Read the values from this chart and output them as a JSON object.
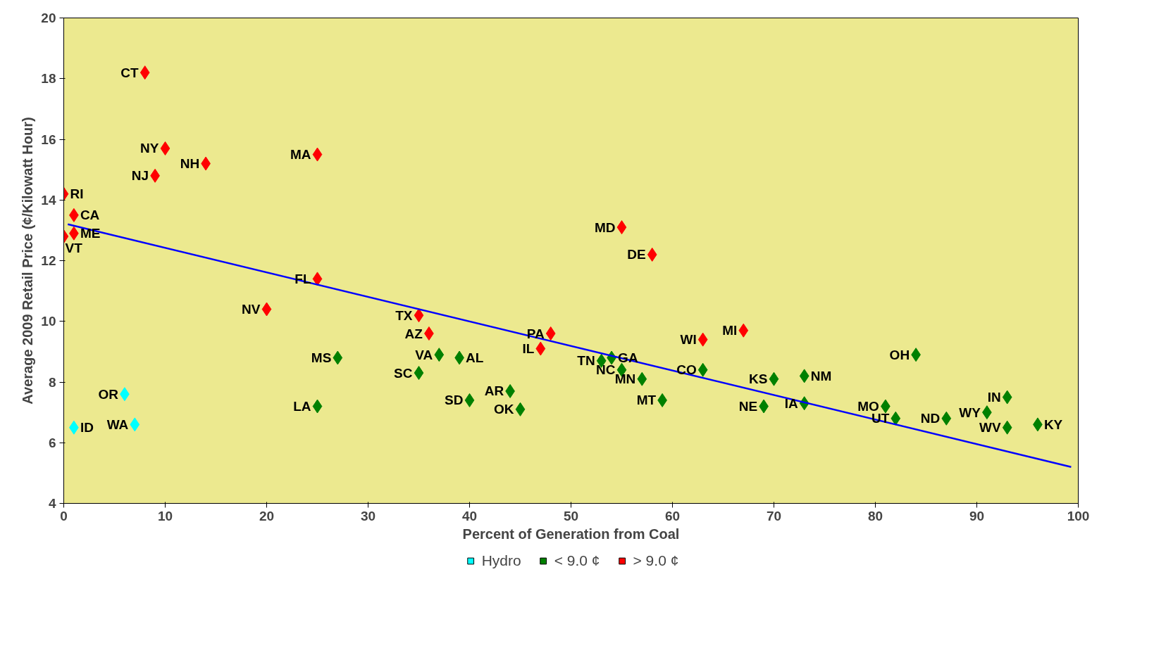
{
  "chart_data": {
    "type": "scatter",
    "xlabel": "Percent of Generation from Coal",
    "ylabel": "Average 2009 Retail Price (¢/Kilowatt Hour)",
    "xlim": [
      0,
      100
    ],
    "ylim": [
      4,
      20
    ],
    "xticks": [
      0,
      10,
      20,
      30,
      40,
      50,
      60,
      70,
      80,
      90,
      100
    ],
    "yticks": [
      4,
      6,
      8,
      10,
      12,
      14,
      16,
      18,
      20
    ],
    "grid": false,
    "legend": "bottom",
    "marker": "diamond",
    "series": [
      {
        "name": "Hydro",
        "color": "#00ffff",
        "x": [
          6,
          7,
          1
        ],
        "values": [
          7.6,
          6.6,
          6.5
        ]
      },
      {
        "name": "< 9.0 ¢",
        "color": "#008000",
        "x": [
          27,
          37,
          39,
          35,
          25,
          40,
          44,
          45,
          53,
          54,
          55,
          57,
          59,
          63,
          70,
          73,
          69,
          73,
          84,
          81,
          82,
          87,
          91,
          93,
          93,
          96
        ],
        "values": [
          8.8,
          8.9,
          8.8,
          8.3,
          7.2,
          7.4,
          7.7,
          7.1,
          8.7,
          8.8,
          8.4,
          8.1,
          7.4,
          8.4,
          8.1,
          8.2,
          7.2,
          7.3,
          8.9,
          7.2,
          6.8,
          6.8,
          7.0,
          7.5,
          6.5,
          6.6
        ]
      },
      {
        "name": "> 9.0 ¢",
        "color": "#ff0000",
        "x": [
          8,
          10,
          14,
          9,
          25,
          0,
          1,
          1,
          0,
          55,
          58,
          25,
          20,
          35,
          36,
          48,
          47,
          63,
          67
        ],
        "values": [
          18.2,
          15.7,
          15.2,
          14.8,
          15.5,
          14.2,
          13.5,
          12.9,
          12.8,
          13.1,
          12.2,
          11.4,
          10.4,
          10.2,
          9.6,
          9.6,
          9.1,
          9.4,
          9.7
        ]
      },
      {
        "type": "line",
        "color": "#0000ff",
        "x": [
          0.4,
          99.3
        ],
        "values": [
          13.2,
          5.2
        ],
        "marker": "none"
      }
    ],
    "annotations": [
      {
        "text": "OR",
        "x": 6,
        "y": 7.6
      },
      {
        "text": "WA",
        "x": 7,
        "y": 6.6
      },
      {
        "text": "ID",
        "x": 1,
        "y": 6.5
      },
      {
        "text": "MS",
        "x": 27,
        "y": 8.8
      },
      {
        "text": "VA",
        "x": 37,
        "y": 8.9
      },
      {
        "text": "AL",
        "x": 39,
        "y": 8.8
      },
      {
        "text": "SC",
        "x": 35,
        "y": 8.3
      },
      {
        "text": "LA",
        "x": 25,
        "y": 7.2
      },
      {
        "text": "SD",
        "x": 40,
        "y": 7.4
      },
      {
        "text": "AR",
        "x": 44,
        "y": 7.7
      },
      {
        "text": "OK",
        "x": 45,
        "y": 7.1
      },
      {
        "text": "TN",
        "x": 53,
        "y": 8.7
      },
      {
        "text": "GA",
        "x": 54,
        "y": 8.8
      },
      {
        "text": "NC",
        "x": 55,
        "y": 8.4
      },
      {
        "text": "MN",
        "x": 57,
        "y": 8.1
      },
      {
        "text": "MT",
        "x": 59,
        "y": 7.4
      },
      {
        "text": "CO",
        "x": 63,
        "y": 8.4
      },
      {
        "text": "KS",
        "x": 70,
        "y": 8.1
      },
      {
        "text": "NM",
        "x": 73,
        "y": 8.2
      },
      {
        "text": "NE",
        "x": 69,
        "y": 7.2
      },
      {
        "text": "IA",
        "x": 73,
        "y": 7.3
      },
      {
        "text": "OH",
        "x": 84,
        "y": 8.9
      },
      {
        "text": "MO",
        "x": 81,
        "y": 7.2
      },
      {
        "text": "UT",
        "x": 82,
        "y": 6.8
      },
      {
        "text": "ND",
        "x": 87,
        "y": 6.8
      },
      {
        "text": "WY",
        "x": 91,
        "y": 7.0
      },
      {
        "text": "IN",
        "x": 93,
        "y": 7.5
      },
      {
        "text": "WV",
        "x": 93,
        "y": 6.5
      },
      {
        "text": "KY",
        "x": 96,
        "y": 6.6
      },
      {
        "text": "CT",
        "x": 8,
        "y": 18.2
      },
      {
        "text": "NY",
        "x": 10,
        "y": 15.7
      },
      {
        "text": "NH",
        "x": 14,
        "y": 15.2
      },
      {
        "text": "NJ",
        "x": 9,
        "y": 14.8
      },
      {
        "text": "MA",
        "x": 25,
        "y": 15.5
      },
      {
        "text": "RI",
        "x": 0,
        "y": 14.2
      },
      {
        "text": "CA",
        "x": 1,
        "y": 13.5
      },
      {
        "text": "ME",
        "x": 1,
        "y": 12.9
      },
      {
        "text": "VT",
        "x": 0,
        "y": 12.8
      },
      {
        "text": "MD",
        "x": 55,
        "y": 13.1
      },
      {
        "text": "DE",
        "x": 58,
        "y": 12.2
      },
      {
        "text": "FL",
        "x": 25,
        "y": 11.4
      },
      {
        "text": "NV",
        "x": 20,
        "y": 10.4
      },
      {
        "text": "TX",
        "x": 35,
        "y": 10.2
      },
      {
        "text": "AZ",
        "x": 36,
        "y": 9.6
      },
      {
        "text": "PA",
        "x": 48,
        "y": 9.6
      },
      {
        "text": "IL",
        "x": 47,
        "y": 9.1
      },
      {
        "text": "WI",
        "x": 63,
        "y": 9.4
      },
      {
        "text": "MI",
        "x": 67,
        "y": 9.7
      }
    ]
  }
}
